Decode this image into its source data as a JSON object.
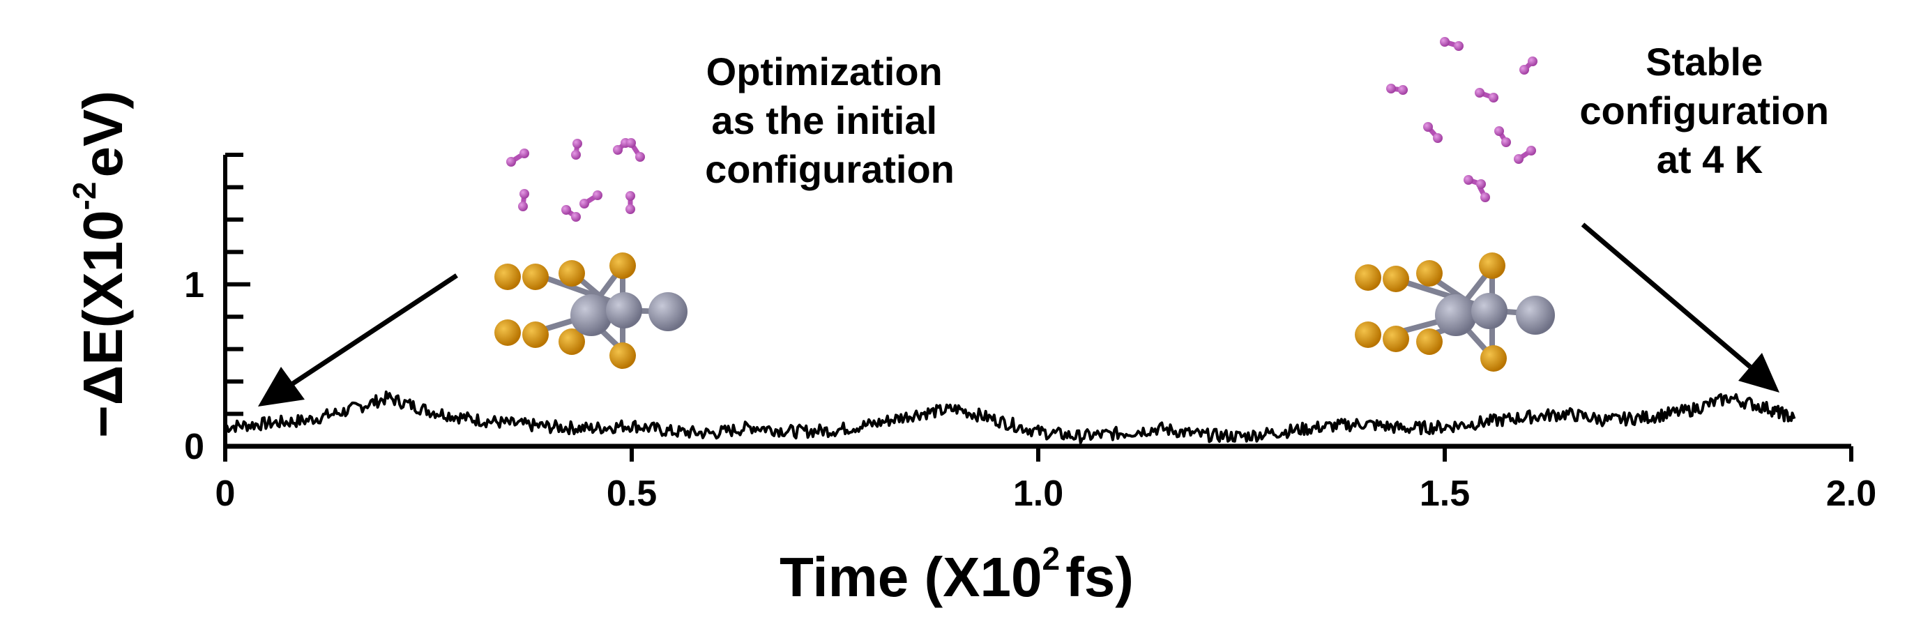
{
  "chart_data": {
    "type": "line",
    "title": "",
    "xlabel": {
      "prefix": "Time (X10",
      "sup": "2",
      "suffix": "fs)"
    },
    "ylabel": {
      "prefix": "−ΔE(X10",
      "sup": "-2",
      "suffix": "eV)"
    },
    "xlim": [
      0,
      2.0
    ],
    "ylim": [
      0,
      1.8
    ],
    "x_ticks": [
      0,
      0.5,
      1.0,
      1.5,
      2.0
    ],
    "x_tick_labels": [
      "0",
      "0.5",
      "1.0",
      "1.5",
      "2.0"
    ],
    "y_ticks": [
      0,
      1
    ],
    "y_tick_labels": [
      "0",
      "1"
    ],
    "grid": false,
    "series": [
      {
        "color": "#000000",
        "x": [
          0.0,
          0.05,
          0.1,
          0.15,
          0.2,
          0.25,
          0.3,
          0.35,
          0.4,
          0.45,
          0.5,
          0.55,
          0.6,
          0.65,
          0.7,
          0.75,
          0.8,
          0.85,
          0.9,
          0.95,
          1.0,
          1.05,
          1.1,
          1.15,
          1.2,
          1.25,
          1.3,
          1.35,
          1.4,
          1.45,
          1.5,
          1.55,
          1.6,
          1.65,
          1.7,
          1.75,
          1.8,
          1.85,
          1.9,
          1.93
        ],
        "y": [
          0.12,
          0.14,
          0.16,
          0.22,
          0.3,
          0.22,
          0.17,
          0.14,
          0.12,
          0.11,
          0.13,
          0.09,
          0.08,
          0.12,
          0.09,
          0.1,
          0.14,
          0.2,
          0.23,
          0.16,
          0.09,
          0.06,
          0.08,
          0.11,
          0.07,
          0.06,
          0.09,
          0.12,
          0.14,
          0.11,
          0.12,
          0.15,
          0.18,
          0.2,
          0.16,
          0.18,
          0.22,
          0.3,
          0.23,
          0.17
        ]
      }
    ]
  },
  "annotations": {
    "left": [
      "Optimization",
      "as the initial",
      "configuration"
    ],
    "right": [
      "Stable",
      "configuration",
      "at 4 K"
    ]
  },
  "colors": {
    "gold_atom": "#c8860b",
    "gray_atom": "#8a8ca0",
    "pink_molecule": "#b44fb4"
  }
}
